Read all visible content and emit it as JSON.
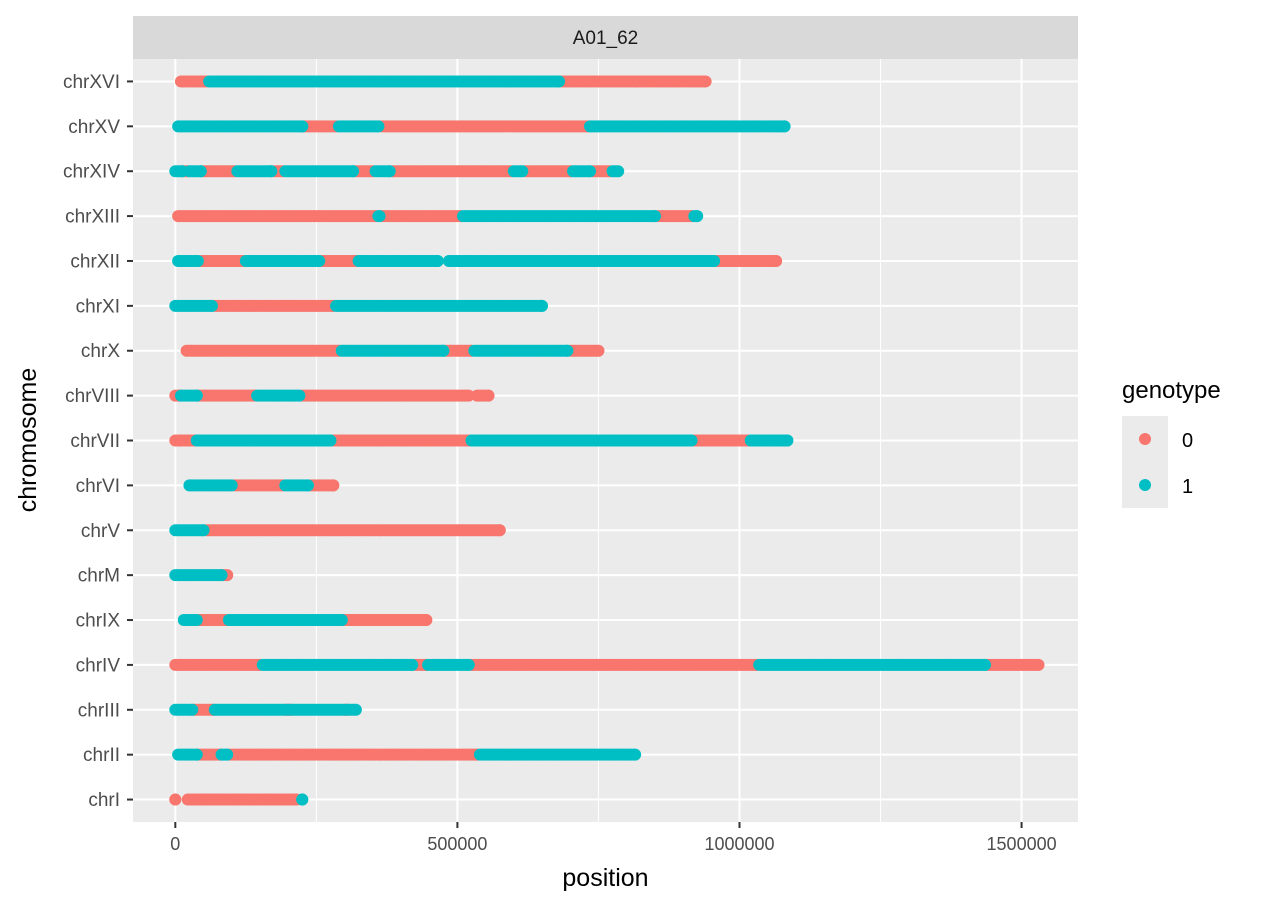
{
  "chart_data": {
    "type": "scatter",
    "facet_label": "A01_62",
    "xlabel": "position",
    "ylabel": "chromosome",
    "xlim": [
      -75000,
      1600000
    ],
    "x_ticks": [
      0,
      500000,
      1000000,
      1500000
    ],
    "x_tick_labels": [
      "0",
      "500000",
      "1000000",
      "1500000"
    ],
    "x_minor_ticks": [
      250000,
      750000,
      1250000
    ],
    "grid": true,
    "legend": {
      "title": "genotype",
      "placement": "right",
      "entries": [
        {
          "label": "0",
          "color": "#F8766D"
        },
        {
          "label": "1",
          "color": "#00BFC4"
        }
      ]
    },
    "categories": [
      "chrI",
      "chrII",
      "chrIII",
      "chrIV",
      "chrIX",
      "chrM",
      "chrV",
      "chrVI",
      "chrVII",
      "chrVIII",
      "chrX",
      "chrXI",
      "chrXII",
      "chrXIII",
      "chrXIV",
      "chrXV",
      "chrXVI"
    ],
    "series": [
      {
        "name": "0",
        "color": "#F8766D",
        "segments": {
          "chrI": [
            [
              0,
              0
            ],
            [
              22000,
              215000
            ]
          ],
          "chrII": [
            [
              40000,
              80000
            ],
            [
              95000,
              535000
            ]
          ],
          "chrIII": [
            [
              32000,
              68000
            ],
            [
              195000,
              205000
            ],
            [
              300000,
              305000
            ]
          ],
          "chrIV": [
            [
              0,
              150000
            ],
            [
              425000,
              445000
            ],
            [
              525000,
              1030000
            ],
            [
              1440000,
              1530000
            ]
          ],
          "chrIX": [
            [
              40000,
              90000
            ],
            [
              300000,
              445000
            ]
          ],
          "chrM": [
            [
              85000,
              92000
            ]
          ],
          "chrV": [
            [
              55000,
              575000
            ]
          ],
          "chrVI": [
            [
              105000,
              190000
            ],
            [
              240000,
              280000
            ]
          ],
          "chrVII": [
            [
              0,
              35000
            ],
            [
              280000,
              520000
            ],
            [
              920000,
              1015000
            ]
          ],
          "chrVIII": [
            [
              0,
              8000
            ],
            [
              40000,
              140000
            ],
            [
              225000,
              520000
            ],
            [
              535000,
              555000
            ]
          ],
          "chrX": [
            [
              20000,
              290000
            ],
            [
              480000,
              525000
            ],
            [
              700000,
              750000
            ]
          ],
          "chrXI": [
            [
              70000,
              280000
            ]
          ],
          "chrXII": [
            [
              45000,
              120000
            ],
            [
              260000,
              320000
            ],
            [
              960000,
              1065000
            ]
          ],
          "chrXIII": [
            [
              5000,
              355000
            ],
            [
              365000,
              505000
            ],
            [
              855000,
              915000
            ]
          ],
          "chrXIV": [
            [
              15000,
              22000
            ],
            [
              50000,
              105000
            ],
            [
              175000,
              190000
            ],
            [
              320000,
              350000
            ],
            [
              385000,
              595000
            ],
            [
              620000,
              700000
            ],
            [
              740000,
              770000
            ]
          ],
          "chrXV": [
            [
              230000,
              285000
            ],
            [
              365000,
              730000
            ]
          ],
          "chrXVI": [
            [
              10000,
              55000
            ],
            [
              685000,
              940000
            ]
          ]
        }
      },
      {
        "name": "1",
        "color": "#00BFC4",
        "segments": {
          "chrI": [
            [
              225000,
              225000
            ]
          ],
          "chrII": [
            [
              5000,
              38000
            ],
            [
              82000,
              92000
            ],
            [
              540000,
              815000
            ]
          ],
          "chrIII": [
            [
              0,
              30000
            ],
            [
              70000,
              320000
            ]
          ],
          "chrIV": [
            [
              155000,
              420000
            ],
            [
              448000,
              520000
            ],
            [
              1035000,
              1435000
            ]
          ],
          "chrIX": [
            [
              15000,
              38000
            ],
            [
              95000,
              295000
            ]
          ],
          "chrM": [
            [
              0,
              82000
            ]
          ],
          "chrV": [
            [
              0,
              50000
            ]
          ],
          "chrVI": [
            [
              25000,
              100000
            ],
            [
              195000,
              235000
            ]
          ],
          "chrVII": [
            [
              38000,
              275000
            ],
            [
              525000,
              915000
            ],
            [
              1020000,
              1085000
            ]
          ],
          "chrVIII": [
            [
              10000,
              38000
            ],
            [
              145000,
              220000
            ]
          ],
          "chrX": [
            [
              295000,
              475000
            ],
            [
              530000,
              695000
            ]
          ],
          "chrXI": [
            [
              0,
              65000
            ],
            [
              285000,
              650000
            ]
          ],
          "chrXII": [
            [
              5000,
              40000
            ],
            [
              125000,
              255000
            ],
            [
              325000,
              465000
            ],
            [
              485000,
              955000
            ]
          ],
          "chrXIII": [
            [
              360000,
              362000
            ],
            [
              510000,
              850000
            ],
            [
              920000,
              925000
            ]
          ],
          "chrXIV": [
            [
              0,
              12000
            ],
            [
              25000,
              45000
            ],
            [
              110000,
              170000
            ],
            [
              195000,
              315000
            ],
            [
              355000,
              380000
            ],
            [
              600000,
              615000
            ],
            [
              705000,
              735000
            ],
            [
              775000,
              785000
            ]
          ],
          "chrXV": [
            [
              5000,
              225000
            ],
            [
              290000,
              360000
            ],
            [
              735000,
              1080000
            ]
          ],
          "chrXVI": [
            [
              60000,
              680000
            ]
          ]
        }
      }
    ]
  }
}
